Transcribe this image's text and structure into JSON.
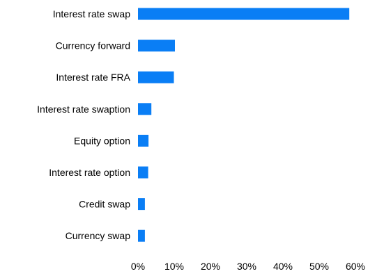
{
  "chart_data": {
    "type": "bar",
    "orientation": "horizontal",
    "title": "",
    "xlabel": "",
    "ylabel": "",
    "categories": [
      "Interest rate swap",
      "Currency forward",
      "Interest rate FRA",
      "Interest rate swaption",
      "Equity option",
      "Interest rate option",
      "Credit swap",
      "Currency swap"
    ],
    "values": [
      0.583,
      0.102,
      0.099,
      0.037,
      0.029,
      0.028,
      0.019,
      0.019
    ],
    "xlim": [
      0,
      0.6
    ],
    "ticks": [
      0,
      0.1,
      0.2,
      0.3,
      0.4,
      0.5,
      0.6
    ],
    "tick_labels": [
      "0%",
      "10%",
      "20%",
      "30%",
      "40%",
      "50%",
      "60%"
    ],
    "grid": false,
    "legend": "none",
    "bar_color": "#0a7ef5"
  }
}
